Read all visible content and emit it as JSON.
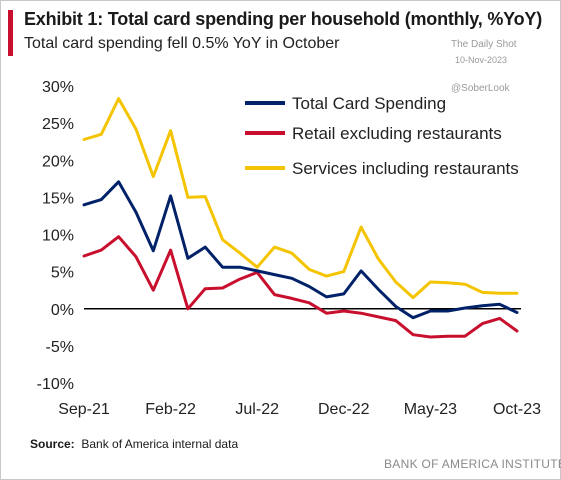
{
  "header": {
    "title": "Exhibit 1: Total card spending per household (monthly, %YoY)",
    "subtitle": "Total card spending fell 0.5% YoY in October"
  },
  "watermark": {
    "source": "The Daily Shot",
    "date": "10-Nov-2023",
    "handle": "@SoberLook"
  },
  "footer": {
    "source_label": "Source:",
    "source_text": "Bank of America internal data",
    "brand": "BANK OF AMERICA INSTITUTE"
  },
  "colors": {
    "accent": "#c8102e",
    "total": "#012169",
    "retail": "#c8102e",
    "services": "#f5c400",
    "axis": "#000000"
  },
  "chart_data": {
    "type": "line",
    "x_tick_labels": [
      "Sep-21",
      "Feb-22",
      "Jul-22",
      "Dec-22",
      "May-23",
      "Oct-23"
    ],
    "y_tick_labels": [
      "30%",
      "25%",
      "20%",
      "15%",
      "10%",
      "5%",
      "0%",
      "-5%",
      "-10%"
    ],
    "ylim": [
      -10,
      30
    ],
    "grid": false,
    "legend_position": "top",
    "categories": [
      "Sep-21",
      "Oct-21",
      "Nov-21",
      "Dec-21",
      "Jan-22",
      "Feb-22",
      "Mar-22",
      "Apr-22",
      "May-22",
      "Jun-22",
      "Jul-22",
      "Aug-22",
      "Sep-22",
      "Oct-22",
      "Nov-22",
      "Dec-22",
      "Jan-23",
      "Feb-23",
      "Mar-23",
      "Apr-23",
      "May-23",
      "Jun-23",
      "Jul-23",
      "Aug-23",
      "Sep-23",
      "Oct-23"
    ],
    "series": [
      {
        "name": "Total Card Spending",
        "values": [
          14.0,
          14.7,
          17.1,
          13.0,
          7.8,
          15.2,
          6.8,
          8.3,
          5.6,
          5.6,
          5.1,
          4.6,
          4.1,
          3.0,
          1.6,
          2.0,
          5.1,
          2.6,
          0.3,
          -1.2,
          -0.3,
          -0.3,
          0.1,
          0.4,
          0.6,
          -0.5
        ]
      },
      {
        "name": "Retail excluding restaurants",
        "values": [
          7.1,
          7.9,
          9.7,
          7.0,
          2.5,
          7.9,
          0.0,
          2.7,
          2.8,
          4.0,
          4.9,
          1.9,
          1.4,
          0.8,
          -0.6,
          -0.3,
          -0.6,
          -1.1,
          -1.6,
          -3.5,
          -3.8,
          -3.7,
          -3.7,
          -2.0,
          -1.3,
          -3.0
        ]
      },
      {
        "name": "Services including restaurants",
        "values": [
          22.8,
          23.5,
          28.3,
          24.2,
          17.8,
          24.0,
          15.0,
          15.1,
          9.3,
          7.5,
          5.6,
          8.3,
          7.5,
          5.3,
          4.4,
          5.0,
          11.0,
          6.7,
          3.6,
          1.5,
          3.6,
          3.5,
          3.3,
          2.2,
          2.1,
          2.1
        ]
      }
    ]
  }
}
